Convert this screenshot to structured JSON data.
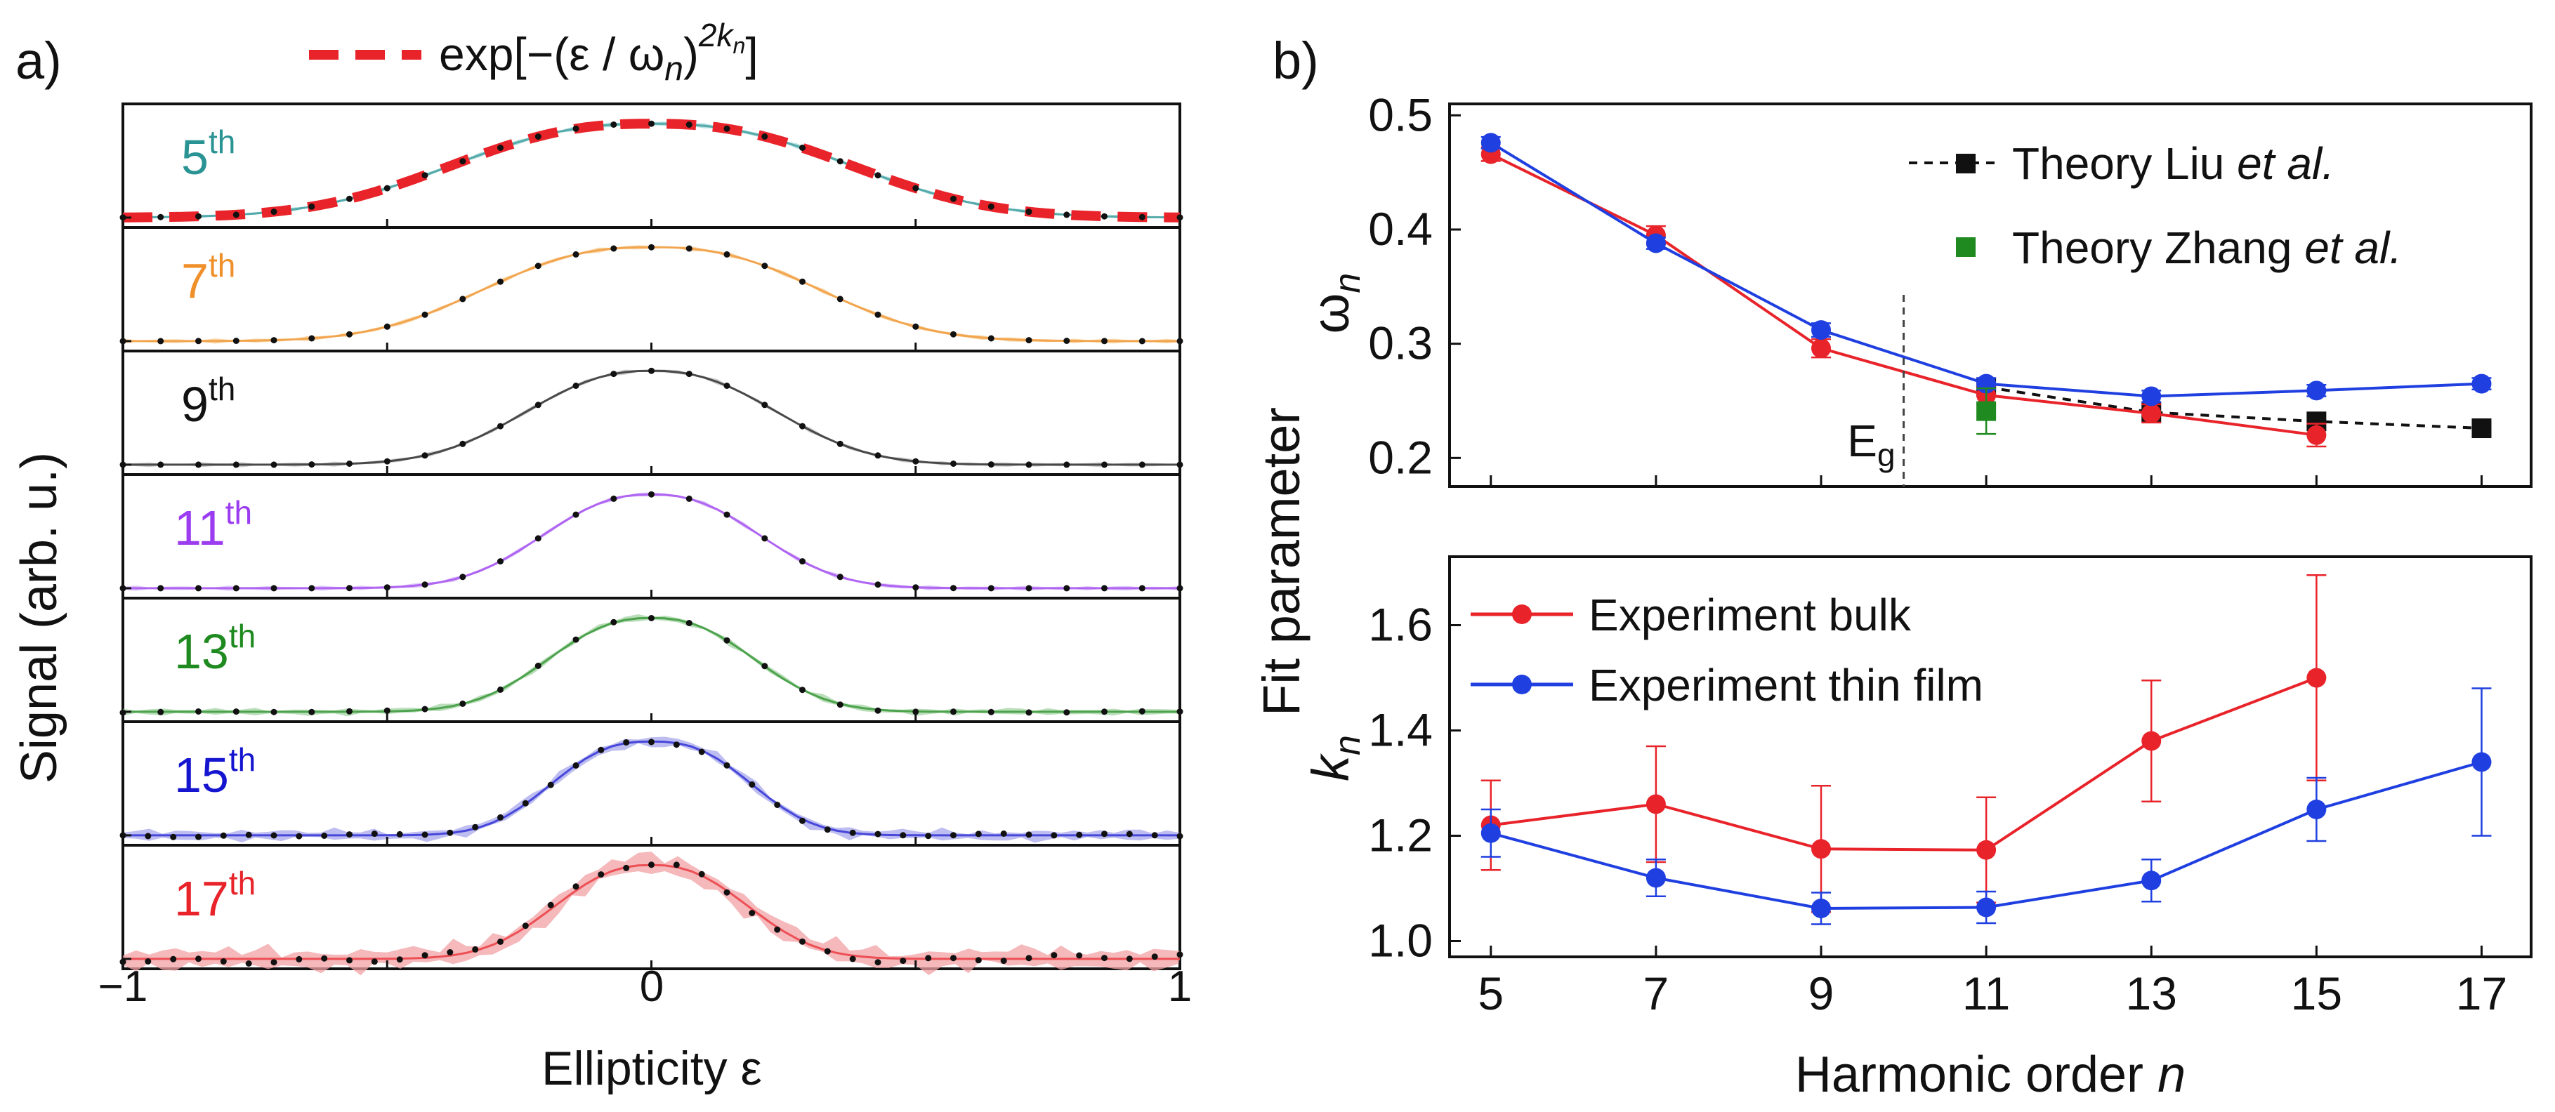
{
  "chart_data": [
    {
      "panel_label": "a)",
      "type": "line",
      "xlabel": "Ellipticity ε",
      "ylabel": "Signal (arb. u.)",
      "xlim": [
        -1,
        1
      ],
      "xticks": [
        "−1",
        "0",
        "1"
      ],
      "legend": {
        "text": "exp[−(ε / ω",
        "sub": "n",
        "close": ")",
        "sup": "2k",
        "sup_sub": "n",
        "end": "]",
        "color": "#e8232a"
      },
      "gaussian_fit": {
        "color": "#e8232a",
        "omega": 0.47,
        "k": 1.22
      },
      "series": [
        {
          "name": "5",
          "suffix": "th",
          "color": "#2a9393",
          "band": "#9fd6d6",
          "omega": 0.47,
          "k": 1.22,
          "noise": 0.0,
          "band_w": 0.02,
          "points": 29
        },
        {
          "name": "7",
          "suffix": "th",
          "color": "#f0902a",
          "band": "#f7c98c",
          "omega": 0.39,
          "k": 1.26,
          "noise": 0.0,
          "band_w": 0.02,
          "points": 29
        },
        {
          "name": "9",
          "suffix": "th",
          "color": "#111111",
          "band": "#bbbbbb",
          "omega": 0.3,
          "k": 1.18,
          "noise": 0.0,
          "band_w": 0.02,
          "points": 29
        },
        {
          "name": "11",
          "suffix": "th",
          "color": "#9b3cf0",
          "band": "#d2b0f5",
          "omega": 0.26,
          "k": 1.18,
          "noise": 0.0,
          "band_w": 0.02,
          "points": 29
        },
        {
          "name": "13",
          "suffix": "th",
          "color": "#1f8a1f",
          "band": "#a3d3a3",
          "omega": 0.245,
          "k": 1.2,
          "noise": 0.01,
          "band_w": 0.03,
          "points": 29
        },
        {
          "name": "15",
          "suffix": "th",
          "color": "#1515d0",
          "band": "#a7a7ec",
          "omega": 0.23,
          "k": 1.3,
          "noise": 0.02,
          "band_w": 0.05,
          "points": 43
        },
        {
          "name": "17",
          "suffix": "th",
          "color": "#e8232a",
          "band": "#f2a0a4",
          "omega": 0.23,
          "k": 1.2,
          "noise": 0.05,
          "band_w": 0.1,
          "points": 43
        }
      ]
    },
    {
      "panel_label": "b)",
      "type": "line",
      "xlabel": "Harmonic order",
      "xlabel_var": "n",
      "ylabel": "Fit parameter",
      "xlim": [
        4.5,
        17.6
      ],
      "xticks": [
        5,
        7,
        9,
        11,
        13,
        15,
        17
      ],
      "top": {
        "ylabel_main": "ω",
        "ylabel_sub": "n",
        "ylim": [
          0.175,
          0.51
        ],
        "yticks": [
          "0.2",
          "0.3",
          "0.4",
          "0.5"
        ],
        "ytick_values": [
          0.2,
          0.3,
          0.4,
          0.5
        ],
        "eg_label": "E",
        "eg_sub": "g",
        "eg_x": 10,
        "legend": [
          {
            "prefix": "Theory Liu ",
            "italic": "et al.",
            "color": "#111111",
            "style": "dashed-square"
          },
          {
            "prefix": "Theory Zhang ",
            "italic": "et al.",
            "color": "#1f8a1f",
            "style": "square"
          }
        ],
        "series": [
          {
            "name": "Experiment bulk",
            "color": "#e8232a",
            "x": [
              5,
              7,
              9,
              11,
              13,
              15
            ],
            "y": [
              0.466,
              0.395,
              0.296,
              0.255,
              0.239,
              0.22
            ],
            "err": [
              0.006,
              0.008,
              0.008,
              0.008,
              0.008,
              0.01
            ]
          },
          {
            "name": "Experiment thin film",
            "color": "#1f3fe0",
            "x": [
              5,
              7,
              9,
              11,
              13,
              15,
              17
            ],
            "y": [
              0.476,
              0.388,
              0.312,
              0.265,
              0.254,
              0.259,
              0.265
            ],
            "err": [
              0.005,
              0.005,
              0.006,
              0.005,
              0.005,
              0.005,
              0.005
            ]
          },
          {
            "name": "Theory Liu et al.",
            "color": "#111111",
            "x": [
              11,
              13,
              15,
              17
            ],
            "y": [
              0.262,
              0.24,
              0.232,
              0.226
            ],
            "err": [
              0,
              0,
              0,
              0
            ]
          },
          {
            "name": "Theory Zhang et al.",
            "color": "#1f8a1f",
            "x": [
              11
            ],
            "y": [
              0.241
            ],
            "err": [
              0.02
            ]
          }
        ]
      },
      "bottom": {
        "ylabel_main": "k",
        "ylabel_sub": "n",
        "ylim": [
          0.97,
          1.73
        ],
        "yticks": [
          "1.0",
          "1.2",
          "1.4",
          "1.6"
        ],
        "ytick_values": [
          1.0,
          1.2,
          1.4,
          1.6
        ],
        "legend": [
          {
            "label": "Experiment bulk",
            "color": "#e8232a"
          },
          {
            "label": "Experiment thin film",
            "color": "#1f3fe0"
          }
        ],
        "series": [
          {
            "name": "Experiment bulk",
            "color": "#e8232a",
            "x": [
              5,
              7,
              9,
              11,
              13,
              15
            ],
            "y": [
              1.22,
              1.26,
              1.175,
              1.173,
              1.38,
              1.5
            ],
            "err": [
              0.085,
              0.11,
              0.12,
              0.1,
              0.115,
              0.195
            ]
          },
          {
            "name": "Experiment thin film",
            "color": "#1f3fe0",
            "x": [
              5,
              7,
              9,
              11,
              13,
              15,
              17
            ],
            "y": [
              1.205,
              1.12,
              1.062,
              1.064,
              1.115,
              1.25,
              1.34
            ],
            "err": [
              0.045,
              0.035,
              0.03,
              0.03,
              0.04,
              0.06,
              0.14
            ]
          }
        ]
      }
    }
  ]
}
